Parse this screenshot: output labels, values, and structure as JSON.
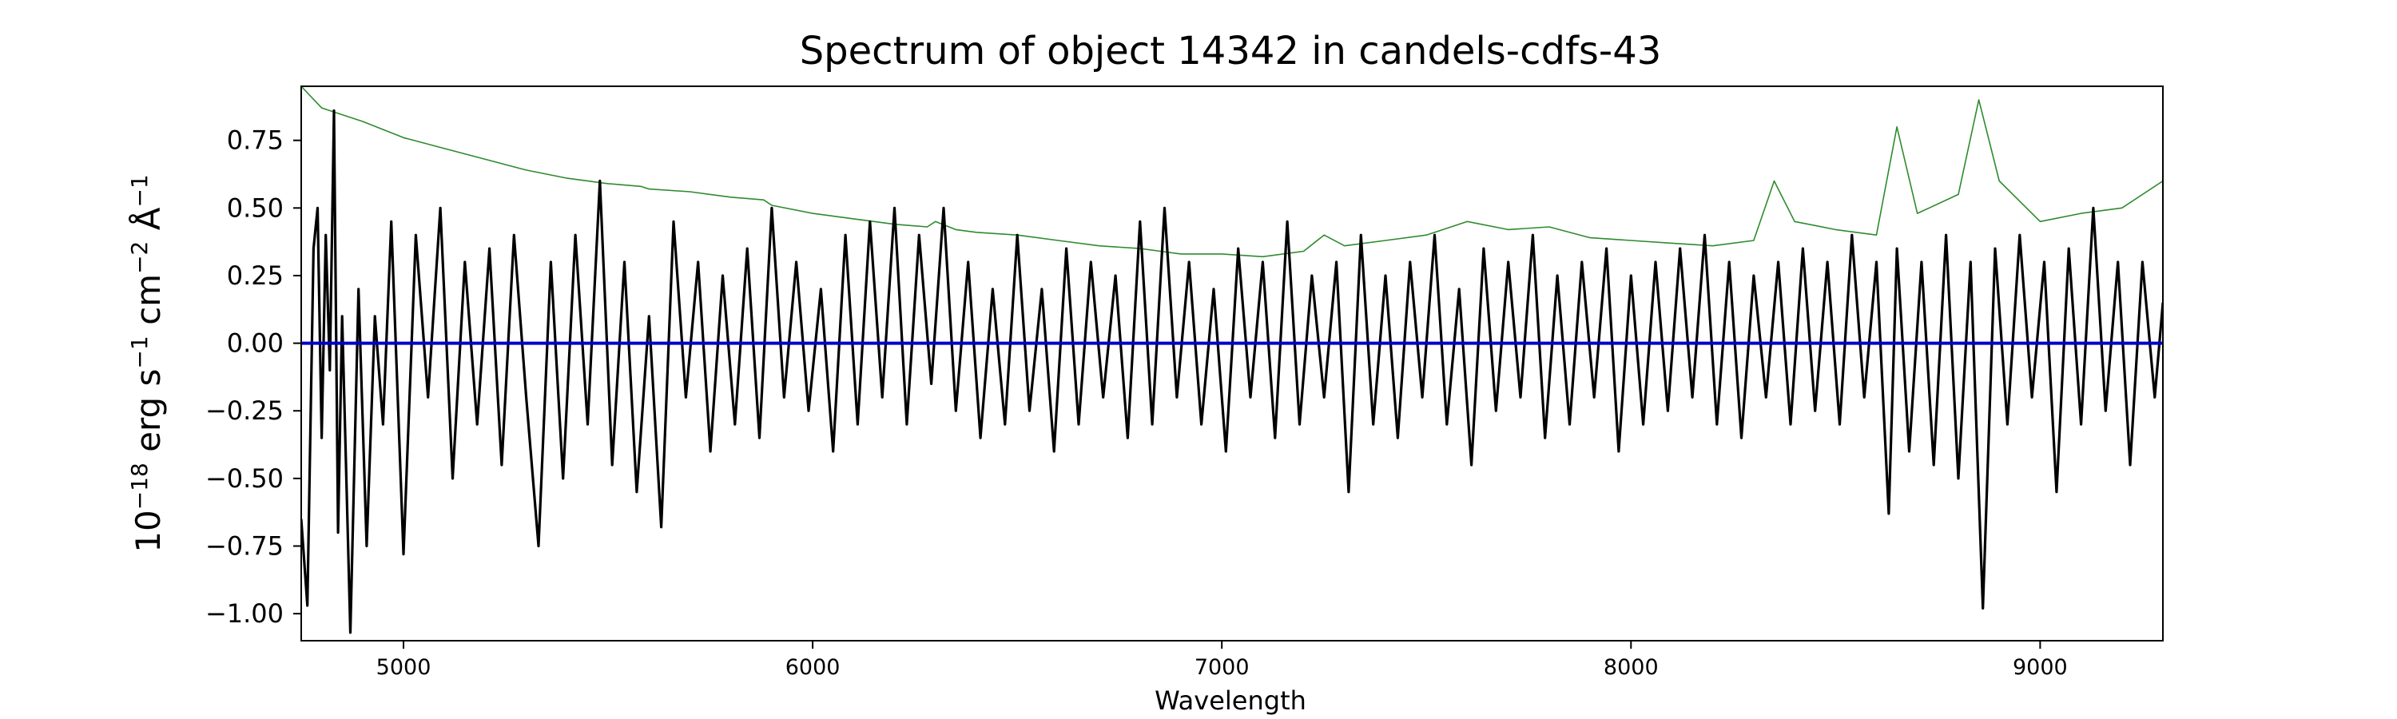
{
  "chart_data": {
    "type": "line",
    "title": "Spectrum of object 14342 in candels-cdfs-43",
    "xlabel": "Wavelength",
    "ylabel_base": "10",
    "ylabel_exp": "−18",
    "ylabel_unit1": " erg s",
    "ylabel_exp1": "−1",
    "ylabel_unit2": " cm",
    "ylabel_exp2": "−2",
    "ylabel_unit3": " Å",
    "ylabel_exp3": "−1",
    "xlim": [
      4750,
      9300
    ],
    "ylim": [
      -1.1,
      0.95
    ],
    "xticks": [
      5000,
      6000,
      7000,
      8000,
      9000
    ],
    "xtick_labels": [
      "5000",
      "6000",
      "7000",
      "8000",
      "9000"
    ],
    "yticks": [
      0.75,
      0.5,
      0.25,
      0.0,
      -0.25,
      -0.5,
      -0.75,
      -1.0
    ],
    "ytick_labels": [
      "0.75",
      "0.50",
      "0.25",
      "0.00",
      "−0.25",
      "−0.50",
      "−0.75",
      "−1.00"
    ],
    "grid": false,
    "colors": {
      "flux": "#000000",
      "error": "#2e8b2e",
      "model": "#0000cc"
    },
    "series": [
      {
        "role": "flux",
        "x": [
          4750,
          4765,
          4780,
          4790,
          4800,
          4810,
          4820,
          4830,
          4840,
          4850,
          4870,
          4890,
          4910,
          4930,
          4950,
          4970,
          5000,
          5030,
          5060,
          5090,
          5120,
          5150,
          5180,
          5210,
          5240,
          5270,
          5300,
          5330,
          5360,
          5390,
          5420,
          5450,
          5480,
          5510,
          5540,
          5570,
          5600,
          5630,
          5660,
          5690,
          5720,
          5750,
          5780,
          5810,
          5840,
          5870,
          5900,
          5930,
          5960,
          5990,
          6020,
          6050,
          6080,
          6110,
          6140,
          6170,
          6200,
          6230,
          6260,
          6290,
          6320,
          6350,
          6380,
          6410,
          6440,
          6470,
          6500,
          6530,
          6560,
          6590,
          6620,
          6650,
          6680,
          6710,
          6740,
          6770,
          6800,
          6830,
          6860,
          6890,
          6920,
          6950,
          6980,
          7010,
          7040,
          7070,
          7100,
          7130,
          7160,
          7190,
          7220,
          7250,
          7280,
          7310,
          7340,
          7370,
          7400,
          7430,
          7460,
          7490,
          7520,
          7550,
          7580,
          7610,
          7640,
          7670,
          7700,
          7730,
          7760,
          7790,
          7820,
          7850,
          7880,
          7910,
          7940,
          7970,
          8000,
          8030,
          8060,
          8090,
          8120,
          8150,
          8180,
          8210,
          8240,
          8270,
          8300,
          8330,
          8360,
          8390,
          8420,
          8450,
          8480,
          8510,
          8540,
          8570,
          8600,
          8630,
          8650,
          8680,
          8710,
          8740,
          8770,
          8800,
          8830,
          8860,
          8890,
          8920,
          8950,
          8980,
          9010,
          9040,
          9070,
          9100,
          9130,
          9160,
          9190,
          9220,
          9250,
          9280,
          9300
        ],
        "y": [
          -0.65,
          -0.97,
          0.35,
          0.5,
          -0.35,
          0.4,
          -0.1,
          0.86,
          -0.7,
          0.1,
          -1.07,
          0.2,
          -0.75,
          0.1,
          -0.3,
          0.45,
          -0.78,
          0.4,
          -0.2,
          0.5,
          -0.5,
          0.3,
          -0.3,
          0.35,
          -0.45,
          0.4,
          -0.2,
          -0.75,
          0.3,
          -0.5,
          0.4,
          -0.3,
          0.6,
          -0.45,
          0.3,
          -0.55,
          0.1,
          -0.68,
          0.45,
          -0.2,
          0.3,
          -0.4,
          0.25,
          -0.3,
          0.35,
          -0.35,
          0.5,
          -0.2,
          0.3,
          -0.25,
          0.2,
          -0.4,
          0.4,
          -0.3,
          0.45,
          -0.2,
          0.5,
          -0.3,
          0.4,
          -0.15,
          0.5,
          -0.25,
          0.3,
          -0.35,
          0.2,
          -0.3,
          0.4,
          -0.25,
          0.2,
          -0.4,
          0.35,
          -0.3,
          0.3,
          -0.2,
          0.25,
          -0.35,
          0.45,
          -0.3,
          0.5,
          -0.2,
          0.3,
          -0.3,
          0.2,
          -0.4,
          0.35,
          -0.2,
          0.3,
          -0.35,
          0.45,
          -0.3,
          0.25,
          -0.2,
          0.3,
          -0.55,
          0.4,
          -0.3,
          0.25,
          -0.35,
          0.3,
          -0.2,
          0.4,
          -0.3,
          0.2,
          -0.45,
          0.35,
          -0.25,
          0.3,
          -0.2,
          0.4,
          -0.35,
          0.25,
          -0.3,
          0.3,
          -0.2,
          0.35,
          -0.4,
          0.25,
          -0.3,
          0.3,
          -0.25,
          0.35,
          -0.2,
          0.4,
          -0.3,
          0.3,
          -0.35,
          0.25,
          -0.2,
          0.3,
          -0.3,
          0.35,
          -0.25,
          0.3,
          -0.3,
          0.4,
          -0.2,
          0.3,
          -0.63,
          0.35,
          -0.4,
          0.3,
          -0.45,
          0.4,
          -0.5,
          0.3,
          -0.98,
          0.35,
          -0.3,
          0.4,
          -0.2,
          0.3,
          -0.55,
          0.35,
          -0.3,
          0.5,
          -0.25,
          0.3,
          -0.45,
          0.3,
          -0.2,
          0.15
        ]
      },
      {
        "role": "error",
        "x": [
          4750,
          4800,
          4900,
          5000,
          5100,
          5200,
          5300,
          5400,
          5500,
          5580,
          5600,
          5700,
          5800,
          5880,
          5900,
          6000,
          6100,
          6200,
          6280,
          6300,
          6350,
          6400,
          6500,
          6600,
          6700,
          6800,
          6850,
          6900,
          7000,
          7100,
          7200,
          7250,
          7300,
          7400,
          7500,
          7600,
          7700,
          7800,
          7900,
          8000,
          8100,
          8200,
          8300,
          8350,
          8400,
          8500,
          8600,
          8650,
          8700,
          8800,
          8850,
          8900,
          9000,
          9100,
          9200,
          9300
        ],
        "y": [
          0.95,
          0.87,
          0.82,
          0.76,
          0.72,
          0.68,
          0.64,
          0.61,
          0.59,
          0.58,
          0.57,
          0.56,
          0.54,
          0.53,
          0.51,
          0.48,
          0.46,
          0.44,
          0.43,
          0.45,
          0.42,
          0.41,
          0.4,
          0.38,
          0.36,
          0.35,
          0.34,
          0.33,
          0.33,
          0.32,
          0.34,
          0.4,
          0.36,
          0.38,
          0.4,
          0.45,
          0.42,
          0.43,
          0.39,
          0.38,
          0.37,
          0.36,
          0.38,
          0.6,
          0.45,
          0.42,
          0.4,
          0.8,
          0.48,
          0.55,
          0.9,
          0.6,
          0.45,
          0.48,
          0.5,
          0.6
        ]
      },
      {
        "role": "model",
        "x": [
          4750,
          9300
        ],
        "y": [
          0.0,
          0.0
        ]
      }
    ]
  }
}
